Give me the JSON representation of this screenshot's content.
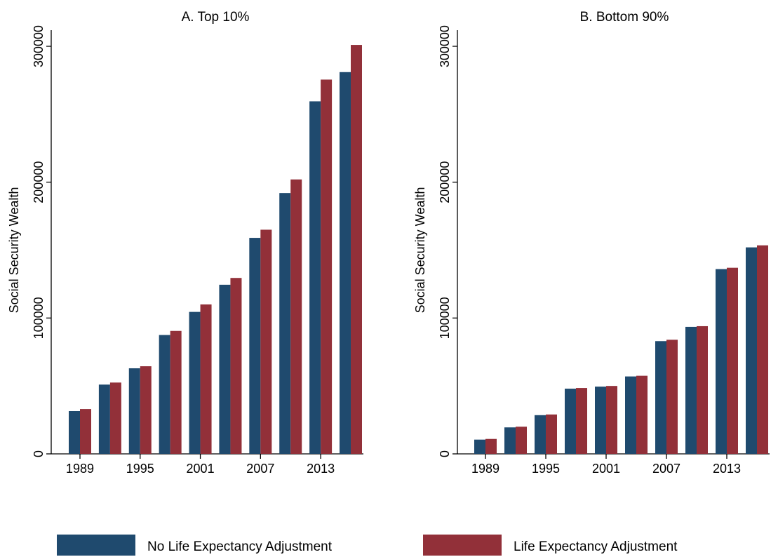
{
  "colors": {
    "no_adjustment": "#1f4a6e",
    "adjustment": "#923039",
    "axis": "#000000",
    "background": "#ffffff"
  },
  "legend": {
    "items": [
      {
        "label": "No Life Expectancy Adjustment",
        "color": "#1f4a6e"
      },
      {
        "label": "Life Expectancy Adjustment",
        "color": "#923039"
      }
    ],
    "placement": "bottom"
  },
  "chart_data": [
    {
      "type": "bar",
      "title": "A. Top 10%",
      "ylabel": "Social Security Wealth",
      "xlabel": "",
      "ylim": [
        0,
        300000
      ],
      "yticks": [
        "0",
        "100000",
        "200000",
        "300000"
      ],
      "categories": [
        "1989",
        "1992",
        "1995",
        "1998",
        "2001",
        "2004",
        "2007",
        "2010",
        "2013",
        "2016"
      ],
      "xticks": [
        "1989",
        "1995",
        "2001",
        "2007",
        "2013"
      ],
      "grid": false,
      "series": [
        {
          "name": "No Life Expectancy Adjustment",
          "values": [
            31500,
            51000,
            63000,
            87500,
            104500,
            124500,
            159000,
            192000,
            259500,
            281000
          ]
        },
        {
          "name": "Life Expectancy Adjustment",
          "values": [
            33000,
            52500,
            64500,
            90500,
            110000,
            129500,
            165000,
            202000,
            275500,
            301000
          ]
        }
      ]
    },
    {
      "type": "bar",
      "title": "B. Bottom 90%",
      "ylabel": "Social Security Wealth",
      "xlabel": "",
      "ylim": [
        0,
        300000
      ],
      "yticks": [
        "0",
        "100000",
        "200000",
        "300000"
      ],
      "categories": [
        "1989",
        "1992",
        "1995",
        "1998",
        "2001",
        "2004",
        "2007",
        "2010",
        "2013",
        "2016"
      ],
      "xticks": [
        "1989",
        "1995",
        "2001",
        "2007",
        "2013"
      ],
      "grid": false,
      "series": [
        {
          "name": "No Life Expectancy Adjustment",
          "values": [
            10500,
            19500,
            28500,
            48000,
            49500,
            57000,
            83000,
            93500,
            136000,
            152000
          ]
        },
        {
          "name": "Life Expectancy Adjustment",
          "values": [
            11000,
            20000,
            29000,
            48500,
            50000,
            57500,
            84000,
            94000,
            137000,
            153500
          ]
        }
      ]
    }
  ]
}
